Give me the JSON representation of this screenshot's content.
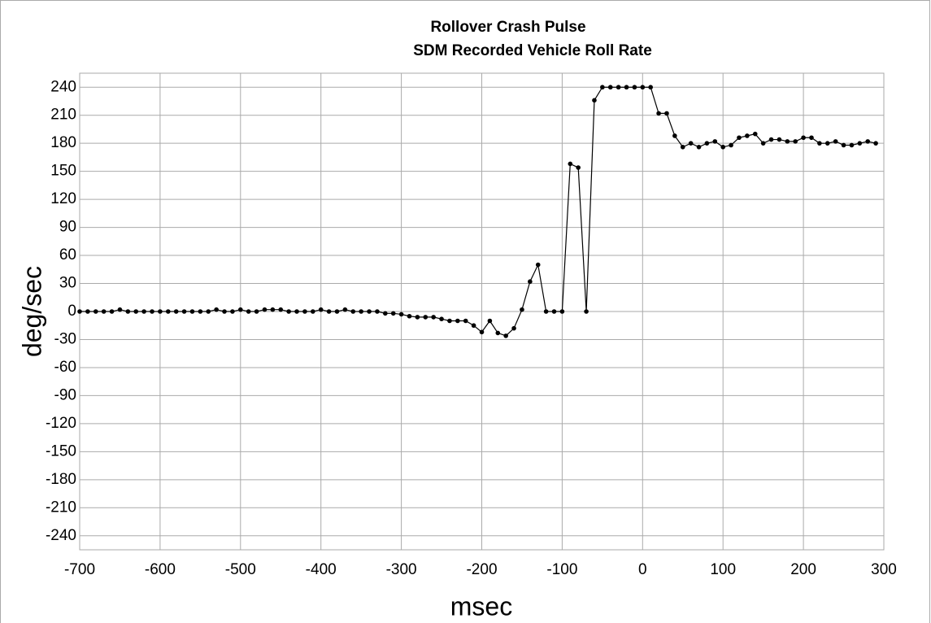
{
  "chart_data": {
    "type": "line",
    "title": "Rollover Crash Pulse",
    "subtitle": "SDM Recorded Vehicle Roll Rate",
    "xlabel": "msec",
    "ylabel": "deg/sec",
    "x": [
      -700,
      -690,
      -680,
      -670,
      -660,
      -650,
      -640,
      -630,
      -620,
      -610,
      -600,
      -590,
      -580,
      -570,
      -560,
      -550,
      -540,
      -530,
      -520,
      -510,
      -500,
      -490,
      -480,
      -470,
      -460,
      -450,
      -440,
      -430,
      -420,
      -410,
      -400,
      -390,
      -380,
      -370,
      -360,
      -350,
      -340,
      -330,
      -320,
      -310,
      -300,
      -290,
      -280,
      -270,
      -260,
      -250,
      -240,
      -230,
      -220,
      -210,
      -200,
      -190,
      -180,
      -170,
      -160,
      -150,
      -140,
      -130,
      -120,
      -110,
      -100,
      -90,
      -80,
      -70,
      -60,
      -50,
      -40,
      -30,
      -20,
      -10,
      0,
      10,
      20,
      30,
      40,
      50,
      60,
      70,
      80,
      90,
      100,
      110,
      120,
      130,
      140,
      150,
      160,
      170,
      180,
      190,
      200,
      210,
      220,
      230,
      240,
      250,
      260,
      270,
      280,
      290
    ],
    "series": [
      {
        "name": "Roll Rate",
        "color": "#000000",
        "values": [
          0,
          0,
          0,
          0,
          0,
          2,
          0,
          0,
          0,
          0,
          0,
          0,
          0,
          0,
          0,
          0,
          0,
          2,
          0,
          0,
          2,
          0,
          0,
          2,
          2,
          2,
          0,
          0,
          0,
          0,
          2,
          0,
          0,
          2,
          0,
          0,
          0,
          0,
          -2,
          -2,
          -3,
          -5,
          -6,
          -6,
          -6,
          -8,
          -10,
          -10,
          -10,
          -15,
          -22,
          -10,
          -23,
          -26,
          -18,
          2,
          32,
          50,
          0,
          0,
          0,
          158,
          154,
          0,
          226,
          240,
          240,
          240,
          240,
          240,
          240,
          240,
          212,
          212,
          188,
          176,
          180,
          176,
          180,
          182,
          176,
          178,
          186,
          188,
          190,
          180,
          184,
          184,
          182,
          182,
          186,
          186,
          180,
          180,
          182,
          178,
          178,
          180,
          182,
          180
        ]
      }
    ],
    "xlim": [
      -700,
      300
    ],
    "ylim": [
      -255,
      255
    ],
    "xticks": [
      -700,
      -600,
      -500,
      -400,
      -300,
      -200,
      -100,
      0,
      100,
      200,
      300
    ],
    "yticks": [
      -240,
      -210,
      -180,
      -150,
      -120,
      -90,
      -60,
      -30,
      0,
      30,
      60,
      90,
      120,
      150,
      180,
      210,
      240
    ],
    "grid": true
  }
}
